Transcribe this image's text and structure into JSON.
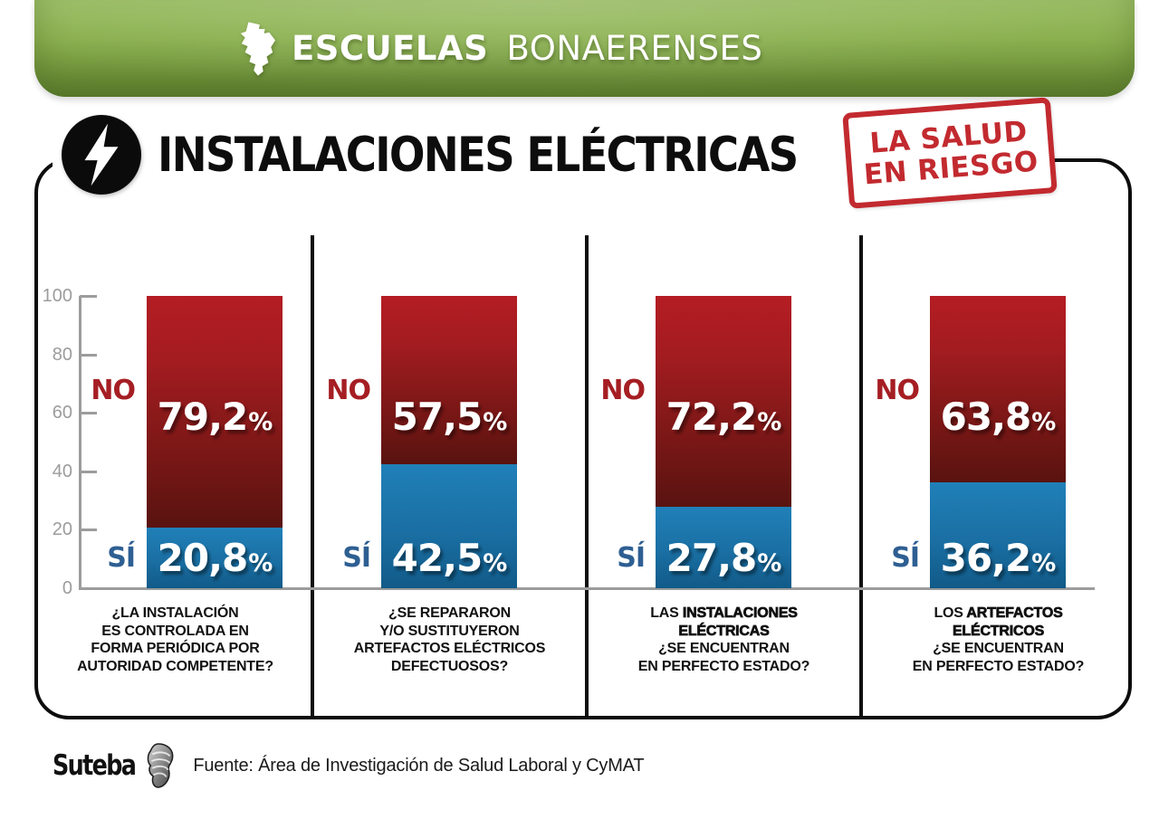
{
  "banner": {
    "brand_bold": "ESCUELAS",
    "brand_light": "BONAERENSES"
  },
  "header": {
    "title": "INSTALACIONES ELÉCTRICAS",
    "stamp": [
      "LA SALUD",
      "EN RIESGO"
    ],
    "stamp_color": "#c22a2f"
  },
  "chart_data": {
    "type": "bar",
    "variant": "stacked_percent_columns",
    "title": "INSTALACIONES ELÉCTRICAS",
    "annotation": "LA SALUD EN RIESGO",
    "ylim": [
      0,
      100
    ],
    "yticks": [
      100,
      80,
      60,
      40,
      20,
      0
    ],
    "grid": false,
    "legend_position": "inline labels left of each column",
    "percent_sign": "%",
    "series_labels": {
      "no": "NO",
      "si": "SÍ"
    },
    "colors": {
      "no_top": "#b41d23",
      "no_bottom": "#591310",
      "si_top": "#2080b8",
      "si_bottom": "#115a88",
      "no_label": "#a51e23",
      "si_label": "#2e5f92",
      "axis": "#9c9c9c"
    },
    "sections": [
      {
        "question": "¿LA INSTALACIÓN ES CONTROLADA EN FORMA PERIÓDICA POR AUTORIDAD COMPETENTE?",
        "no_value": 79.2,
        "no_display": "79,2",
        "si_value": 20.8,
        "si_display": "20,8",
        "question_lines": [
          [
            {
              "t": "¿LA INSTALACIÓN",
              "strong": false
            }
          ],
          [
            {
              "t": "ES CONTROLADA EN",
              "strong": false
            }
          ],
          [
            {
              "t": "FORMA PERIÓDICA POR",
              "strong": false
            }
          ],
          [
            {
              "t": "AUTORIDAD COMPETENTE?",
              "strong": false
            }
          ]
        ]
      },
      {
        "question": "¿SE REPARARON Y/O SUSTITUYERON ARTEFACTOS ELÉCTRICOS DEFECTUOSOS?",
        "no_value": 57.5,
        "no_display": "57,5",
        "si_value": 42.5,
        "si_display": "42,5",
        "question_lines": [
          [
            {
              "t": "¿SE REPARARON",
              "strong": false
            }
          ],
          [
            {
              "t": "Y/O SUSTITUYERON",
              "strong": false
            }
          ],
          [
            {
              "t": "ARTEFACTOS ELÉCTRICOS",
              "strong": false
            }
          ],
          [
            {
              "t": "DEFECTUOSOS?",
              "strong": false
            }
          ]
        ]
      },
      {
        "question": "LAS INSTALACIONES ELÉCTRICAS ¿SE ENCUENTRAN EN PERFECTO ESTADO?",
        "no_value": 72.2,
        "no_display": "72,2",
        "si_value": 27.8,
        "si_display": "27,8",
        "question_lines": [
          [
            {
              "t": "LAS ",
              "strong": false
            },
            {
              "t": "INSTALACIONES",
              "strong": true
            }
          ],
          [
            {
              "t": "ELÉCTRICAS",
              "strong": true
            }
          ],
          [
            {
              "t": "¿SE ENCUENTRAN",
              "strong": false
            }
          ],
          [
            {
              "t": "EN PERFECTO ESTADO?",
              "strong": false
            }
          ]
        ]
      },
      {
        "question": "LOS ARTEFACTOS ELÉCTRICOS ¿SE ENCUENTRAN EN PERFECTO ESTADO?",
        "no_value": 63.8,
        "no_display": "63,8",
        "si_value": 36.2,
        "si_display": "36,2",
        "question_lines": [
          [
            {
              "t": "LOS ",
              "strong": false
            },
            {
              "t": "ARTEFACTOS",
              "strong": true
            }
          ],
          [
            {
              "t": "ELÉCTRICOS",
              "strong": true
            }
          ],
          [
            {
              "t": "¿SE ENCUENTRAN",
              "strong": false
            }
          ],
          [
            {
              "t": "EN PERFECTO ESTADO?",
              "strong": false
            }
          ]
        ]
      }
    ]
  },
  "footer": {
    "logo": "Suteba",
    "source": "Fuente: Área de Investigación de Salud Laboral y CyMAT"
  }
}
